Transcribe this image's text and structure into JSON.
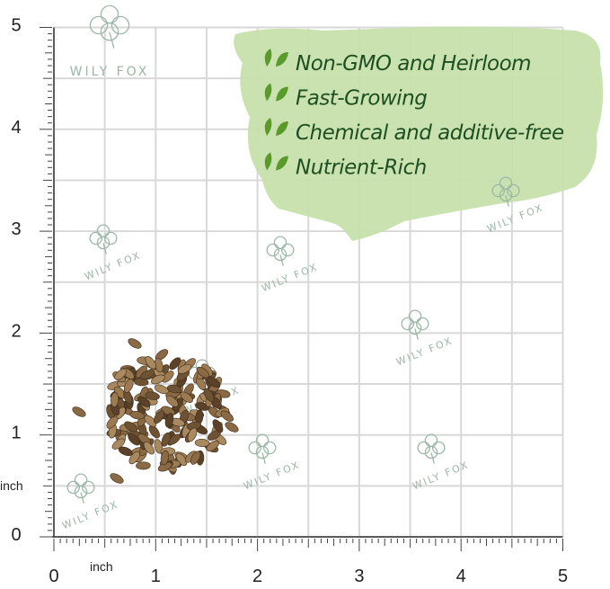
{
  "brand": "WILY FOX",
  "features": [
    "Non-GMO and Heirloom",
    "Fast-Growing",
    "Chemical and additive-free",
    "Nutrient-Rich"
  ],
  "ruler": {
    "unit": "inch",
    "x_labels": [
      "0",
      "1",
      "2",
      "3",
      "4",
      "5"
    ],
    "y_labels": [
      "0",
      "1",
      "2",
      "3",
      "4",
      "5"
    ]
  }
}
